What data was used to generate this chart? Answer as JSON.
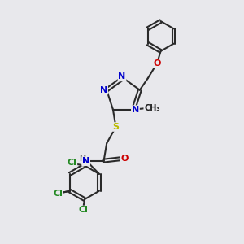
{
  "bg_color": "#e8e8ec",
  "bond_color": "#2a2a2a",
  "bond_width": 1.5,
  "atom_colors": {
    "N": "#0000cc",
    "O": "#cc0000",
    "S": "#bbbb00",
    "Cl": "#228822",
    "C": "#1a1a1a",
    "H": "#444444"
  },
  "font_size": 8.0,
  "small_font": 7.0
}
